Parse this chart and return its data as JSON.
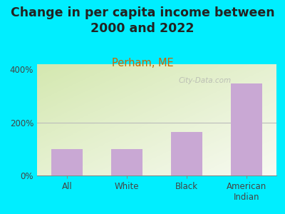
{
  "title": "Change in per capita income between\n2000 and 2022",
  "subtitle": "Perham, ME",
  "categories": [
    "All",
    "White",
    "Black",
    "American\nIndian"
  ],
  "values": [
    100,
    100,
    163,
    347
  ],
  "bar_color": "#c9a8d4",
  "background_outer": "#00eeff",
  "title_fontsize": 12.5,
  "subtitle_fontsize": 10.5,
  "subtitle_color": "#cc6600",
  "yticks": [
    0,
    200,
    400
  ],
  "ytick_labels": [
    "0%",
    "200%",
    "400%"
  ],
  "ylim": [
    0,
    420
  ],
  "watermark": "City-Data.com",
  "tick_color": "#444444",
  "axis_label_color": "#444444",
  "title_color": "#222222"
}
